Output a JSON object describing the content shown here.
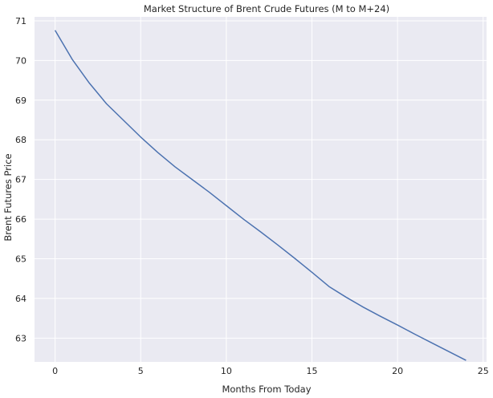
{
  "chart_data": {
    "type": "line",
    "title": "Market Structure of Brent Crude Futures (M to M+24)",
    "xlabel": "Months From Today",
    "ylabel": "Brent Futures Price",
    "xlim": [
      -1.2,
      25.2
    ],
    "ylim": [
      62.4,
      71.1
    ],
    "xticks": [
      0,
      5,
      10,
      15,
      20,
      25
    ],
    "yticks": [
      63,
      64,
      65,
      66,
      67,
      68,
      69,
      70,
      71
    ],
    "grid": true,
    "background": "#eaeaf2",
    "grid_color": "#ffffff",
    "line_color": "#4c72b0",
    "series": [
      {
        "x": [
          0,
          1,
          2,
          3,
          4,
          5,
          6,
          7,
          8,
          9,
          10,
          11,
          12,
          13,
          14,
          15,
          16,
          17,
          18,
          19,
          20,
          21,
          22,
          23,
          24
        ],
        "values": [
          70.76,
          70.03,
          69.43,
          68.91,
          68.49,
          68.07,
          67.68,
          67.32,
          67.0,
          66.68,
          66.34,
          66.0,
          65.68,
          65.35,
          65.01,
          64.66,
          64.3,
          64.03,
          63.78,
          63.55,
          63.33,
          63.1,
          62.88,
          62.66,
          62.44
        ]
      }
    ]
  }
}
